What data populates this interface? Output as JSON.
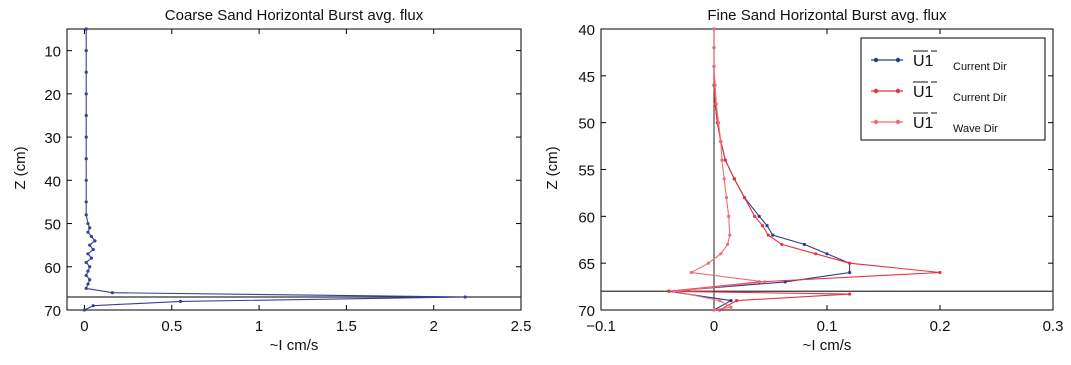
{
  "chart_data": [
    {
      "type": "line",
      "title": "Coarse Sand Horizontal  Burst avg. flux",
      "xlabel": "~I cm/s",
      "ylabel": "Z (cm)",
      "xlim": [
        -0.1,
        2.5
      ],
      "ylim": [
        5,
        70
      ],
      "y_reversed": true,
      "xticks": [
        0,
        0.5,
        1,
        1.5,
        2,
        2.5
      ],
      "xtick_labels": [
        "0",
        "0.5",
        "1",
        "1.5",
        "2",
        "2.5"
      ],
      "yticks": [
        10,
        20,
        30,
        40,
        50,
        60,
        70
      ],
      "ytick_labels": [
        "10",
        "20",
        "30",
        "40",
        "50",
        "60",
        "70"
      ],
      "reference_lines": [
        {
          "orientation": "horizontal",
          "y": 67
        }
      ],
      "series": [
        {
          "color": "#3a3f9a",
          "points": [
            [
              0.01,
              5
            ],
            [
              0.01,
              10
            ],
            [
              0.01,
              15
            ],
            [
              0.01,
              20
            ],
            [
              0.01,
              25
            ],
            [
              0.01,
              30
            ],
            [
              0.01,
              35
            ],
            [
              0.01,
              40
            ],
            [
              0.01,
              45
            ],
            [
              0.01,
              48
            ],
            [
              0.02,
              50
            ],
            [
              0.03,
              51
            ],
            [
              0.02,
              52
            ],
            [
              0.04,
              53
            ],
            [
              0.06,
              54
            ],
            [
              0.03,
              55
            ],
            [
              0.05,
              56
            ],
            [
              0.02,
              57
            ],
            [
              0.04,
              58
            ],
            [
              0.01,
              59
            ],
            [
              0.03,
              60
            ],
            [
              0.02,
              61
            ],
            [
              0.01,
              62
            ],
            [
              0.03,
              63
            ],
            [
              0.02,
              64
            ],
            [
              0.01,
              65
            ],
            [
              0.16,
              66
            ],
            [
              2.18,
              67
            ],
            [
              0.55,
              68
            ],
            [
              0.05,
              69
            ],
            [
              0.0,
              70
            ]
          ]
        }
      ]
    },
    {
      "type": "line",
      "title": "Fine Sand Horizontal  Burst avg. flux",
      "xlabel": "~I cm/s",
      "ylabel": "Z (cm)",
      "xlim": [
        -0.1,
        0.3
      ],
      "ylim": [
        40,
        70
      ],
      "y_reversed": true,
      "xticks": [
        -0.1,
        0,
        0.1,
        0.2,
        0.3
      ],
      "xtick_labels": [
        "−0.1",
        "0",
        "0.1",
        "0.2",
        "0.3"
      ],
      "yticks": [
        40,
        45,
        50,
        55,
        60,
        65,
        70
      ],
      "ytick_labels": [
        "40",
        "45",
        "50",
        "55",
        "60",
        "65",
        "70"
      ],
      "reference_lines": [
        {
          "orientation": "horizontal",
          "y": 68
        },
        {
          "orientation": "vertical",
          "x": 0
        }
      ],
      "legend": {
        "position": "top-right",
        "entries": [
          {
            "symbol": "U1 (overbar)",
            "label": "Current Dir",
            "color": "#2e3a8c"
          },
          {
            "symbol": "U1 (overbar)",
            "label": "Current Dir",
            "color": "#e8323c"
          },
          {
            "symbol": "U1 (overbar)",
            "label": "Wave Dir",
            "color": "#ee6b78"
          }
        ]
      },
      "series": [
        {
          "color": "#2e3a8c",
          "points": [
            [
              0.0,
              40
            ],
            [
              0.0,
              42
            ],
            [
              0.0,
              44
            ],
            [
              0.0,
              46
            ],
            [
              0.001,
              48
            ],
            [
              0.003,
              50
            ],
            [
              0.006,
              52
            ],
            [
              0.01,
              54
            ],
            [
              0.018,
              56
            ],
            [
              0.027,
              58
            ],
            [
              0.04,
              60
            ],
            [
              0.047,
              61
            ],
            [
              0.052,
              62
            ],
            [
              0.08,
              63
            ],
            [
              0.1,
              64
            ],
            [
              0.12,
              65
            ],
            [
              0.12,
              66
            ],
            [
              0.063,
              67
            ],
            [
              -0.04,
              68
            ],
            [
              0.015,
              69
            ],
            [
              0.0,
              70
            ]
          ]
        },
        {
          "color": "#e8323c",
          "points": [
            [
              0.0,
              40
            ],
            [
              0.0,
              42
            ],
            [
              0.0,
              44
            ],
            [
              0.0,
              46
            ],
            [
              0.001,
              48
            ],
            [
              0.003,
              50
            ],
            [
              0.006,
              52
            ],
            [
              0.01,
              54
            ],
            [
              0.018,
              56
            ],
            [
              0.027,
              58
            ],
            [
              0.036,
              60
            ],
            [
              0.043,
              61
            ],
            [
              0.048,
              62
            ],
            [
              0.06,
              63
            ],
            [
              0.09,
              64
            ],
            [
              0.12,
              65
            ],
            [
              0.2,
              66
            ],
            [
              0.04,
              67
            ],
            [
              -0.04,
              68
            ],
            [
              0.12,
              68.3
            ],
            [
              0.02,
              69
            ],
            [
              0.005,
              70
            ]
          ]
        },
        {
          "color": "#ee6b78",
          "points": [
            [
              0.0,
              40
            ],
            [
              0.0,
              42
            ],
            [
              0.0,
              44
            ],
            [
              0.001,
              46
            ],
            [
              0.002,
              48
            ],
            [
              0.004,
              50
            ],
            [
              0.006,
              52
            ],
            [
              0.007,
              54
            ],
            [
              0.009,
              56
            ],
            [
              0.011,
              58
            ],
            [
              0.013,
              60
            ],
            [
              0.014,
              62
            ],
            [
              0.012,
              63
            ],
            [
              0.006,
              64
            ],
            [
              -0.005,
              65
            ],
            [
              -0.02,
              66
            ],
            [
              0.045,
              67
            ],
            [
              -0.035,
              68
            ],
            [
              0.005,
              69
            ],
            [
              0.015,
              69.7
            ],
            [
              0.0,
              70
            ]
          ]
        }
      ]
    }
  ]
}
